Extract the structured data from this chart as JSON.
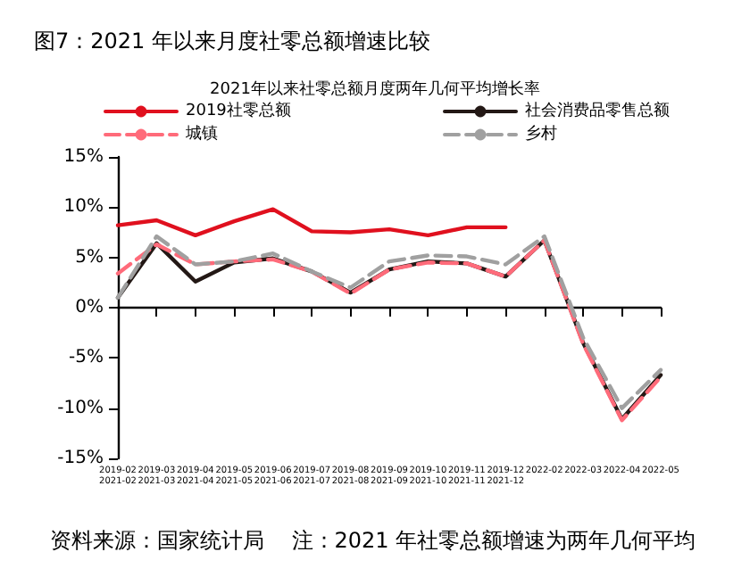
{
  "chart_data": {
    "type": "line",
    "title": "图7：2021 年以来月度社零总额增速比较",
    "subtitle": "2021年以来社零总额月度两年几何平均增长率",
    "categories": [
      "2019-02\n2021-02",
      "2019-03\n2021-03",
      "2019-04\n2021-04",
      "2019-05\n2021-05",
      "2019-06\n2021-06",
      "2019-07\n2021-07",
      "2019-08\n2021-08",
      "2019-09\n2021-09",
      "2019-10\n2021-10",
      "2019-11\n2021-11",
      "2019-12\n2021-12",
      "2022-02",
      "2022-03",
      "2022-04",
      "2022-05"
    ],
    "series": [
      {
        "name": "2019社零总额",
        "color": "#e0101e",
        "line_style": "solid",
        "values": [
          8.2,
          8.7,
          7.2,
          8.6,
          9.8,
          7.6,
          7.5,
          7.8,
          7.2,
          8.0,
          8.0,
          null,
          null,
          null,
          null
        ]
      },
      {
        "name": "社会消费品零售总额",
        "color": "#231815",
        "line_style": "solid",
        "values": [
          1.0,
          6.4,
          2.6,
          4.5,
          4.9,
          3.6,
          1.5,
          3.8,
          4.6,
          4.4,
          3.1,
          6.7,
          -3.5,
          -11.1,
          -6.7
        ]
      },
      {
        "name": "城镇",
        "color": "#ff6b7a",
        "line_style": "dashed",
        "values": [
          3.4,
          6.3,
          4.3,
          4.6,
          4.8,
          3.6,
          1.4,
          3.8,
          4.5,
          4.4,
          3.1,
          6.7,
          -3.6,
          -11.2,
          -6.9
        ]
      },
      {
        "name": "乡村",
        "color": "#a0a0a0",
        "line_style": "dashed",
        "values": [
          1.0,
          7.1,
          4.3,
          4.6,
          5.4,
          3.6,
          2.0,
          4.6,
          5.2,
          5.1,
          4.3,
          7.1,
          -3.0,
          -10.0,
          -6.2
        ]
      }
    ],
    "ylim": [
      -15,
      15
    ],
    "yticks": [
      {
        "value": -15,
        "label": "-15%"
      },
      {
        "value": -10,
        "label": "-10%"
      },
      {
        "value": -5,
        "label": "-5%"
      },
      {
        "value": 0,
        "label": "0%"
      },
      {
        "value": 5,
        "label": "5%"
      },
      {
        "value": 10,
        "label": "10%"
      },
      {
        "value": 15,
        "label": "15%"
      }
    ],
    "legend": "top",
    "marker": "none",
    "annotations": [
      "资料来源：国家统计局    注：2021 年社零总额增速为两年几何平均"
    ]
  }
}
